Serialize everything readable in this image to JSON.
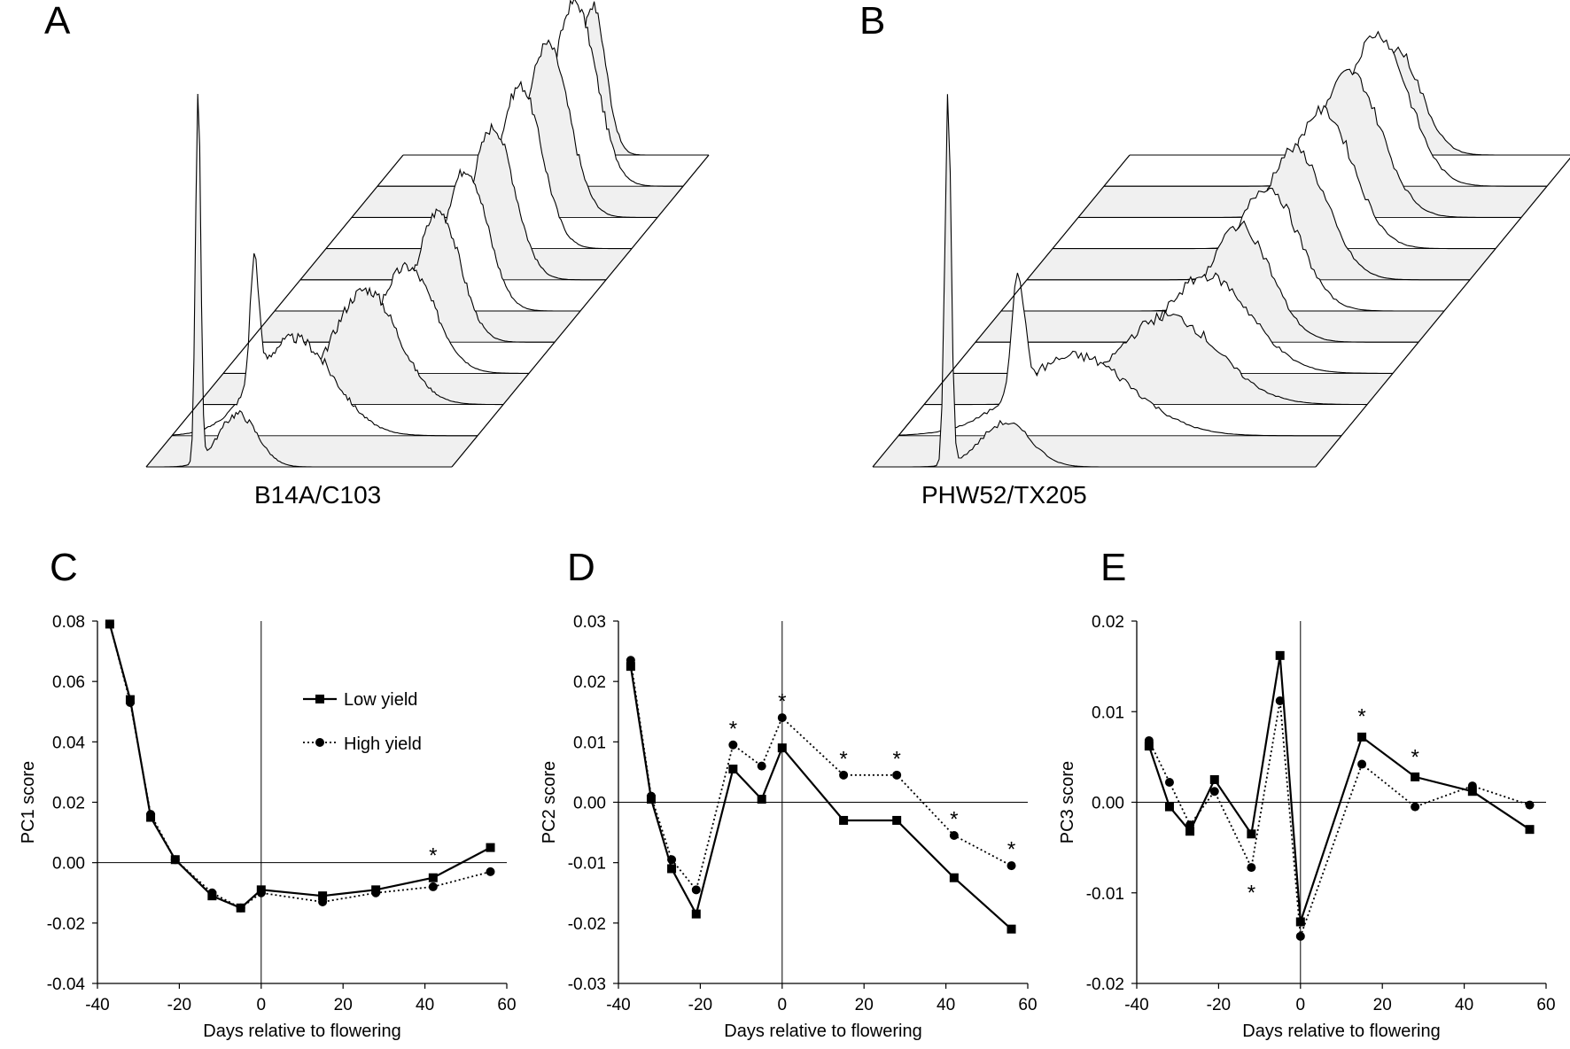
{
  "panels": {
    "a": {
      "letter": "A",
      "sample_label": "B14A/C103"
    },
    "b": {
      "letter": "B",
      "sample_label": "PHW52/TX205"
    },
    "c": {
      "letter": "C"
    },
    "d": {
      "letter": "D"
    },
    "e": {
      "letter": "E"
    }
  },
  "colors": {
    "line": "#000000",
    "stripe_fill": "#f0f0f0",
    "background": "#ffffff"
  },
  "legend": {
    "low_yield": "Low yield",
    "high_yield": "High yield"
  },
  "chart_data": [
    {
      "id": "C",
      "type": "line",
      "xlabel": "Days relative to flowering",
      "ylabel": "PC1 score",
      "xlim": [
        -40,
        60
      ],
      "ylim": [
        -0.04,
        0.08
      ],
      "xticks": [
        "-40",
        "-20",
        "0",
        "20",
        "40",
        "60"
      ],
      "yticks": [
        "0.08",
        "0.06",
        "0.04",
        "0.02",
        "0.00",
        "-0.02",
        "-0.04"
      ],
      "ytick_values": [
        0.08,
        0.06,
        0.04,
        0.02,
        0.0,
        -0.02,
        -0.04
      ],
      "x": [
        -37,
        -32,
        -27,
        -21,
        -12,
        -5,
        0,
        15,
        28,
        42,
        56
      ],
      "series": [
        {
          "name": "Low yield",
          "marker": "square",
          "style": "solid",
          "values": [
            0.079,
            0.054,
            0.015,
            0.001,
            -0.011,
            -0.015,
            -0.009,
            -0.011,
            -0.009,
            -0.005,
            0.005
          ]
        },
        {
          "name": "High yield",
          "marker": "circle",
          "style": "dotted",
          "values": [
            0.079,
            0.053,
            0.016,
            0.001,
            -0.01,
            -0.015,
            -0.01,
            -0.013,
            -0.01,
            -0.008,
            -0.003
          ]
        }
      ],
      "annotations": [
        {
          "text": "*",
          "x": 42,
          "y": 0.003
        }
      ],
      "legend_position": "top-right"
    },
    {
      "id": "D",
      "type": "line",
      "xlabel": "Days relative to flowering",
      "ylabel": "PC2 score",
      "xlim": [
        -40,
        60
      ],
      "ylim": [
        -0.03,
        0.03
      ],
      "xticks": [
        "-40",
        "-20",
        "0",
        "20",
        "40",
        "60"
      ],
      "yticks": [
        "0.03",
        "0.02",
        "0.01",
        "0.00",
        "-0.01",
        "-0.02",
        "-0.03"
      ],
      "ytick_values": [
        0.03,
        0.02,
        0.01,
        0.0,
        -0.01,
        -0.02,
        -0.03
      ],
      "x": [
        -37,
        -32,
        -27,
        -21,
        -12,
        -5,
        0,
        15,
        28,
        42,
        56
      ],
      "series": [
        {
          "name": "Low yield",
          "marker": "square",
          "style": "solid",
          "values": [
            0.0225,
            0.0005,
            -0.011,
            -0.0185,
            0.0055,
            0.0005,
            0.009,
            -0.003,
            -0.003,
            -0.0125,
            -0.021
          ]
        },
        {
          "name": "High yield",
          "marker": "circle",
          "style": "dotted",
          "values": [
            0.0235,
            0.001,
            -0.0095,
            -0.0145,
            0.0095,
            0.006,
            0.014,
            0.0045,
            0.0045,
            -0.0055,
            -0.0105
          ]
        }
      ],
      "annotations": [
        {
          "text": "*",
          "x": -12,
          "y": 0.0125
        },
        {
          "text": "*",
          "x": 0,
          "y": 0.017
        },
        {
          "text": "*",
          "x": 15,
          "y": 0.0075
        },
        {
          "text": "*",
          "x": 28,
          "y": 0.0075
        },
        {
          "text": "*",
          "x": 42,
          "y": -0.0025
        },
        {
          "text": "*",
          "x": 56,
          "y": -0.0075
        }
      ]
    },
    {
      "id": "E",
      "type": "line",
      "xlabel": "Days relative to flowering",
      "ylabel": "PC3 score",
      "xlim": [
        -40,
        60
      ],
      "ylim": [
        -0.02,
        0.02
      ],
      "xticks": [
        "-40",
        "-20",
        "0",
        "20",
        "40",
        "60"
      ],
      "yticks": [
        "0.02",
        "0.01",
        "0.00",
        "-0.01",
        "-0.02"
      ],
      "ytick_values": [
        0.02,
        0.01,
        0.0,
        -0.01,
        -0.02
      ],
      "x": [
        -37,
        -32,
        -27,
        -21,
        -12,
        -5,
        0,
        15,
        28,
        42,
        56
      ],
      "series": [
        {
          "name": "Low yield",
          "marker": "square",
          "style": "solid",
          "values": [
            0.0062,
            -0.0005,
            -0.0032,
            0.0025,
            -0.0035,
            0.0162,
            -0.0132,
            0.0072,
            0.0028,
            0.0012,
            -0.003
          ]
        },
        {
          "name": "High yield",
          "marker": "circle",
          "style": "dotted",
          "values": [
            0.0068,
            0.0022,
            -0.0025,
            0.0012,
            -0.0072,
            0.0112,
            -0.0148,
            0.0042,
            -0.0005,
            0.0018,
            -0.0003
          ]
        }
      ],
      "annotations": [
        {
          "text": "*",
          "x": 15,
          "y": 0.0097
        },
        {
          "text": "*",
          "x": 28,
          "y": 0.0052
        },
        {
          "text": "*",
          "x": -12,
          "y": -0.0098
        }
      ]
    }
  ]
}
